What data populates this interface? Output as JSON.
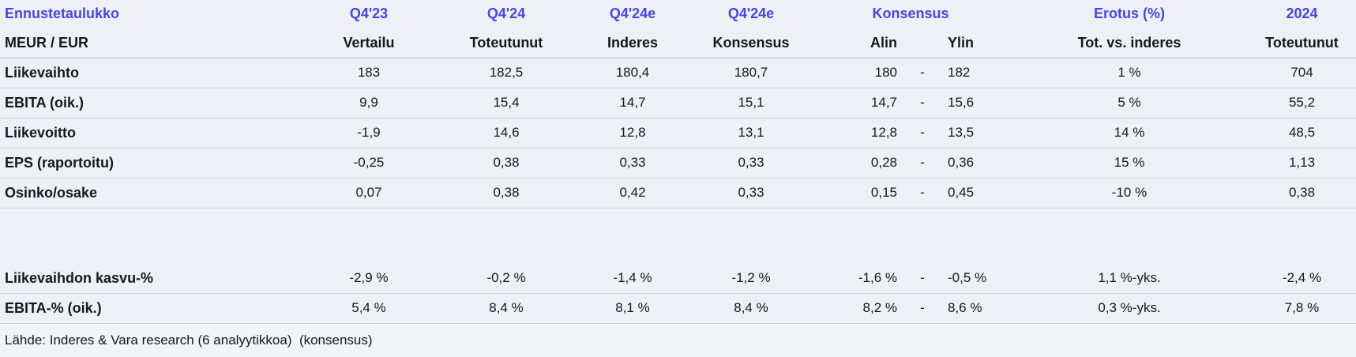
{
  "style": {
    "accent_color": "#4645E8",
    "background_color": "#EEF0F5",
    "row_border_color": "#CED2DD",
    "header_border_color": "#B6BBC8",
    "text_color": "#17181C",
    "footer_background_color": "#F3F4F8"
  },
  "chart_data": {
    "type": "table",
    "title": "Ennustetaulukko",
    "unit_label": "MEUR / EUR",
    "header_top": [
      "Q4'23",
      "Q4'24",
      "Q4'24e",
      "Q4'24e",
      "Konsensus",
      "Erotus (%)",
      "2024"
    ],
    "header_sub": [
      "Vertailu",
      "Toteutunut",
      "Inderes",
      "Konsensus",
      "Alin",
      "Ylin",
      "Tot. vs. inderes",
      "Toteutunut"
    ],
    "rows": [
      {
        "label": "Liikevaihto",
        "values": [
          "183",
          "182,5",
          "180,4",
          "180,7",
          "180",
          "-",
          "182",
          "1 %",
          "704"
        ]
      },
      {
        "label": "EBITA (oik.)",
        "values": [
          "9,9",
          "15,4",
          "14,7",
          "15,1",
          "14,7",
          "-",
          "15,6",
          "5 %",
          "55,2"
        ]
      },
      {
        "label": "Liikevoitto",
        "values": [
          "-1,9",
          "14,6",
          "12,8",
          "13,1",
          "12,8",
          "-",
          "13,5",
          "14 %",
          "48,5"
        ]
      },
      {
        "label": "EPS (raportoitu)",
        "values": [
          "-0,25",
          "0,38",
          "0,33",
          "0,33",
          "0,28",
          "-",
          "0,36",
          "15 %",
          "1,13"
        ]
      },
      {
        "label": "Osinko/osake",
        "values": [
          "0,07",
          "0,38",
          "0,42",
          "0,33",
          "0,15",
          "-",
          "0,45",
          "-10 %",
          "0,38"
        ]
      },
      {
        "label": "Liikevaihdon kasvu-%",
        "gap_before": true,
        "values": [
          "-2,9 %",
          "-0,2 %",
          "-1,4 %",
          "-1,2 %",
          "-1,6 %",
          "-",
          "-0,5 %",
          "1,1 %-yks.",
          "-2,4 %"
        ]
      },
      {
        "label": "EBITA-% (oik.)",
        "values": [
          "5,4 %",
          "8,4 %",
          "8,1 %",
          "8,4 %",
          "8,2 %",
          "-",
          "8,6 %",
          "0,3 %-yks.",
          "7,8 %"
        ]
      }
    ],
    "source_note": "Lähde: Inderes & Vara research (6 analyytikkoa)  (konsensus)"
  }
}
